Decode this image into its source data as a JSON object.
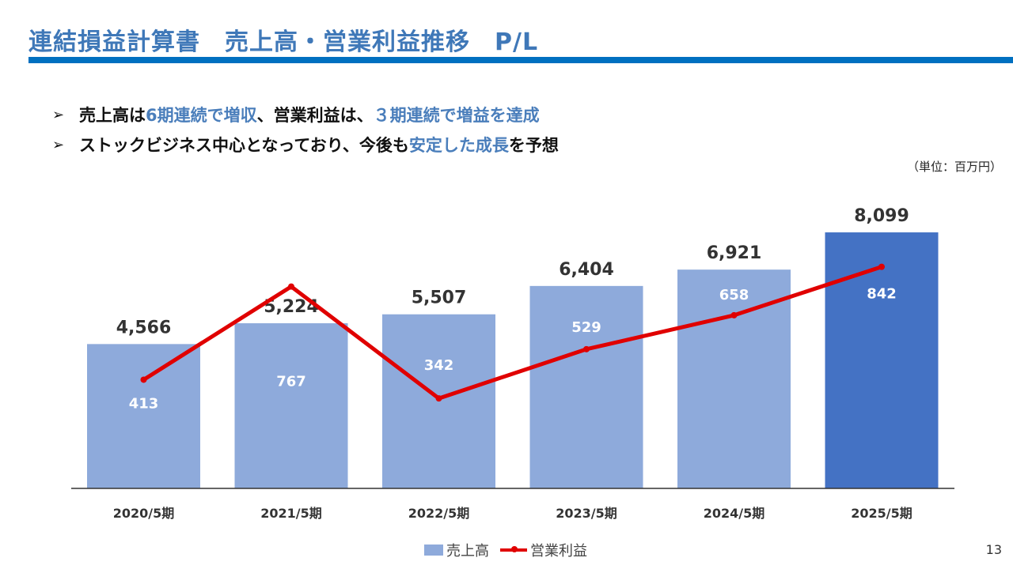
{
  "title": "連結損益計算書　売上高・営業利益推移　P/L",
  "bullets": [
    {
      "parts": [
        {
          "text": "売上高は",
          "highlight": false
        },
        {
          "text": "6期連続で増収",
          "highlight": true
        },
        {
          "text": "、営業利益は、",
          "highlight": false
        },
        {
          "text": "３期連続で増益を達成",
          "highlight": true
        }
      ]
    },
    {
      "parts": [
        {
          "text": "ストックビジネス中心となっており、今後も",
          "highlight": false
        },
        {
          "text": "安定した成長",
          "highlight": true
        },
        {
          "text": "を予想",
          "highlight": false
        }
      ]
    }
  ],
  "unit_label": "（単位：百万円）",
  "page_number": "13",
  "colors": {
    "title": "#3f78b8",
    "rule": "#0070c0",
    "highlight": "#4a7ebb",
    "bar": "#8eaadb",
    "bar_highlight": "#4472c4",
    "line": "#e00000"
  },
  "chart_data": {
    "type": "bar",
    "categories": [
      "2020/5期",
      "2021/5期",
      "2022/5期",
      "2023/5期",
      "2024/5期",
      "2025/5期"
    ],
    "series": [
      {
        "name": "売上高",
        "type": "bar",
        "values": [
          4566,
          5224,
          5507,
          6404,
          6921,
          8099
        ],
        "labels": [
          "4,566",
          "5,224",
          "5,507",
          "6,404",
          "6,921",
          "8,099"
        ],
        "highlight_index": 5
      },
      {
        "name": "営業利益",
        "type": "line",
        "values": [
          413,
          767,
          342,
          529,
          658,
          842
        ],
        "labels": [
          "413",
          "767",
          "342",
          "529",
          "658",
          "842"
        ]
      }
    ],
    "bar_axis_range": [
      0,
      9000
    ],
    "line_axis_range": [
      0,
      1000
    ],
    "grid": false,
    "legend_position": "bottom"
  }
}
